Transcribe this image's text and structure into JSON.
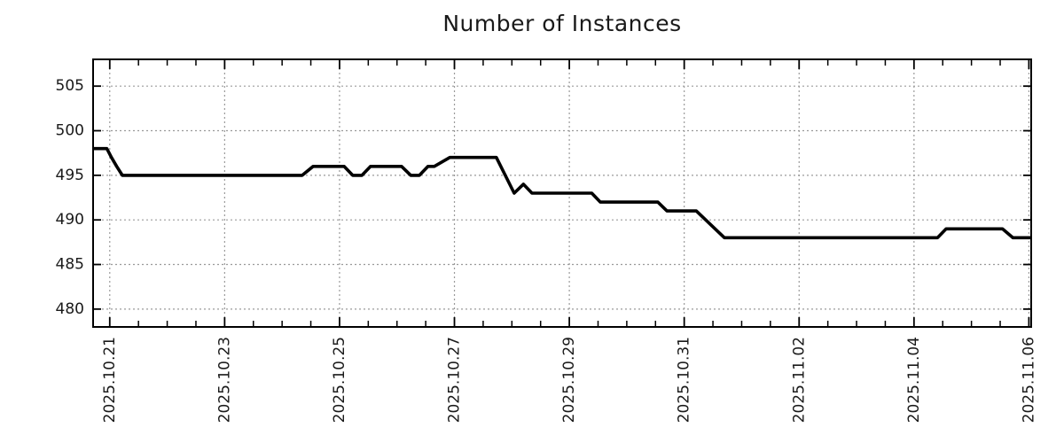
{
  "chart_data": {
    "type": "line",
    "title": "Number of Instances",
    "x_axis": {
      "label": "",
      "range_days": [
        -0.29,
        16.04
      ],
      "epoch": "2025.10.21",
      "major_ticks": [
        {
          "day": 0,
          "label": "2025.10.21"
        },
        {
          "day": 2,
          "label": "2025.10.23"
        },
        {
          "day": 4,
          "label": "2025.10.25"
        },
        {
          "day": 6,
          "label": "2025.10.27"
        },
        {
          "day": 8,
          "label": "2025.10.29"
        },
        {
          "day": 10,
          "label": "2025.10.31"
        },
        {
          "day": 12,
          "label": "2025.11.02"
        },
        {
          "day": 14,
          "label": "2025.11.04"
        },
        {
          "day": 16,
          "label": "2025.11.06"
        }
      ],
      "minor_tick_step_days": 0.5
    },
    "y_axis": {
      "label": "",
      "range": [
        478,
        508
      ],
      "major_ticks": [
        480,
        485,
        490,
        495,
        500,
        505
      ]
    },
    "grid": {
      "show": true,
      "color": "#9a9a9a",
      "style": "dotted"
    },
    "legend": {
      "show": false
    },
    "series": [
      {
        "name": "instances",
        "color": "#000000",
        "width": 3.6,
        "points": [
          [
            -0.29,
            498
          ],
          [
            -0.05,
            498
          ],
          [
            0.03,
            497
          ],
          [
            0.12,
            496
          ],
          [
            0.22,
            495
          ],
          [
            3.35,
            495
          ],
          [
            3.54,
            496
          ],
          [
            4.08,
            496
          ],
          [
            4.23,
            495
          ],
          [
            4.39,
            495
          ],
          [
            4.54,
            496
          ],
          [
            5.08,
            496
          ],
          [
            5.24,
            495
          ],
          [
            5.39,
            495
          ],
          [
            5.54,
            496
          ],
          [
            5.65,
            496
          ],
          [
            5.92,
            497
          ],
          [
            6.73,
            497
          ],
          [
            7.04,
            493
          ],
          [
            7.2,
            494
          ],
          [
            7.35,
            493
          ],
          [
            8.39,
            493
          ],
          [
            8.54,
            492
          ],
          [
            9.54,
            492
          ],
          [
            9.7,
            491
          ],
          [
            10.21,
            491
          ],
          [
            10.7,
            488
          ],
          [
            14.41,
            488
          ],
          [
            14.56,
            489
          ],
          [
            15.54,
            489
          ],
          [
            15.72,
            488
          ],
          [
            16.04,
            488
          ]
        ]
      }
    ],
    "colors": {
      "background": "#ffffff",
      "frame": "#000000",
      "text": "#1a1a1a"
    }
  }
}
